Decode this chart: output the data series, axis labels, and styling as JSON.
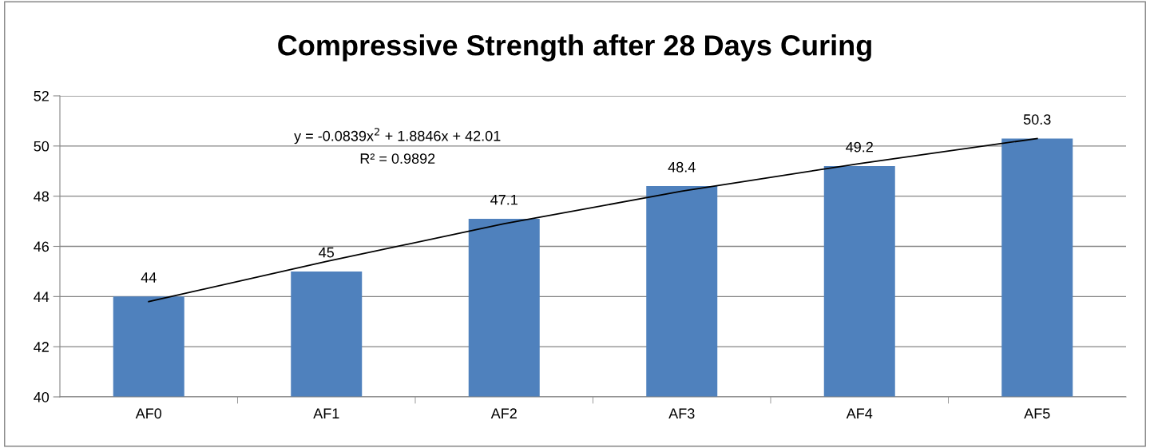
{
  "chart_data": {
    "type": "bar",
    "title": "Compressive Strength after 28 Days Curing",
    "categories": [
      "AF0",
      "AF1",
      "AF2",
      "AF3",
      "AF4",
      "AF5"
    ],
    "series": [
      {
        "color": "#4f81bd",
        "values": [
          44,
          45,
          47.1,
          48.4,
          49.2,
          50.3
        ],
        "value_labels": [
          "44",
          "45",
          "47.1",
          "48.4",
          "49.2",
          "50.3"
        ]
      },
      {
        "type": "line",
        "color": "#000000",
        "values": [
          43.8,
          45.4,
          46.9,
          48.2,
          49.3,
          50.3
        ]
      }
    ],
    "annotations": [
      "y = -0.0839x$^{2}$ + 1.8846x + 42.01",
      "R² = 0.9892"
    ],
    "ylim": [
      40,
      52
    ],
    "yticks": [
      40,
      42,
      44,
      46,
      48,
      50,
      52
    ],
    "grid": "y",
    "legend": false
  }
}
